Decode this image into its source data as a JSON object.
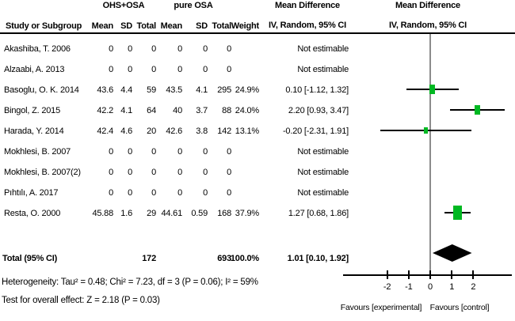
{
  "header": {
    "group1": "OHS+OSA",
    "group2": "pure OSA",
    "md_left": "Mean Difference",
    "md_right": "Mean Difference",
    "sub_left": "IV, Random, 95% CI",
    "sub_right": "IV, Random, 95% CI",
    "columns": {
      "study": "Study or Subgroup",
      "mean1": "Mean",
      "sd1": "SD",
      "total1": "Total",
      "mean2": "Mean",
      "sd2": "SD",
      "total2": "Total",
      "weight": "Weight"
    }
  },
  "colors": {
    "square": "#00b822",
    "ci_line": "#000000",
    "diamond": "#000000",
    "zero_line": "#8c8c8c"
  },
  "chart_data": {
    "type": "forest",
    "effect_measure": "Mean Difference",
    "model": "IV, Random, 95% CI",
    "groups": [
      "OHS+OSA",
      "pure OSA"
    ],
    "studies": [
      {
        "study": "Akashiba, T. 2006",
        "mean1": "0",
        "sd1": "0",
        "total1": "0",
        "mean2": "0",
        "sd2": "0",
        "total2": "0",
        "weight": "",
        "weight_pct": null,
        "ci_text": "Not estimable",
        "md": null,
        "lo": null,
        "hi": null
      },
      {
        "study": "Alzaabi, A. 2013",
        "mean1": "0",
        "sd1": "0",
        "total1": "0",
        "mean2": "0",
        "sd2": "0",
        "total2": "0",
        "weight": "",
        "weight_pct": null,
        "ci_text": "Not estimable",
        "md": null,
        "lo": null,
        "hi": null
      },
      {
        "study": "Basoglu, O. K. 2014",
        "mean1": "43.6",
        "sd1": "4.4",
        "total1": "59",
        "mean2": "43.5",
        "sd2": "4.1",
        "total2": "295",
        "weight": "24.9%",
        "weight_pct": 24.9,
        "ci_text": "0.10 [-1.12, 1.32]",
        "md": 0.1,
        "lo": -1.12,
        "hi": 1.32
      },
      {
        "study": "Bingol, Z. 2015",
        "mean1": "42.2",
        "sd1": "4.1",
        "total1": "64",
        "mean2": "40",
        "sd2": "3.7",
        "total2": "88",
        "weight": "24.0%",
        "weight_pct": 24.0,
        "ci_text": "2.20 [0.93, 3.47]",
        "md": 2.2,
        "lo": 0.93,
        "hi": 3.47
      },
      {
        "study": "Harada, Y. 2014",
        "mean1": "42.4",
        "sd1": "4.6",
        "total1": "20",
        "mean2": "42.6",
        "sd2": "3.8",
        "total2": "142",
        "weight": "13.1%",
        "weight_pct": 13.1,
        "ci_text": "-0.20 [-2.31, 1.91]",
        "md": -0.2,
        "lo": -2.31,
        "hi": 1.91
      },
      {
        "study": "Mokhlesi, B. 2007",
        "mean1": "0",
        "sd1": "0",
        "total1": "0",
        "mean2": "0",
        "sd2": "0",
        "total2": "0",
        "weight": "",
        "weight_pct": null,
        "ci_text": "Not estimable",
        "md": null,
        "lo": null,
        "hi": null
      },
      {
        "study": "Mokhlesi, B. 2007(2)",
        "mean1": "0",
        "sd1": "0",
        "total1": "0",
        "mean2": "0",
        "sd2": "0",
        "total2": "0",
        "weight": "",
        "weight_pct": null,
        "ci_text": "Not estimable",
        "md": null,
        "lo": null,
        "hi": null
      },
      {
        "study": "Pıhtılı, A. 2017",
        "mean1": "0",
        "sd1": "0",
        "total1": "0",
        "mean2": "0",
        "sd2": "0",
        "total2": "0",
        "weight": "",
        "weight_pct": null,
        "ci_text": "Not estimable",
        "md": null,
        "lo": null,
        "hi": null
      },
      {
        "study": "Resta, O. 2000",
        "mean1": "45.88",
        "sd1": "1.6",
        "total1": "29",
        "mean2": "44.61",
        "sd2": "0.59",
        "total2": "168",
        "weight": "37.9%",
        "weight_pct": 37.9,
        "ci_text": "1.27 [0.68, 1.86]",
        "md": 1.27,
        "lo": 0.68,
        "hi": 1.86
      }
    ],
    "total": {
      "label": "Total (95% CI)",
      "total1": "172",
      "total2": "693",
      "weight": "100.0%",
      "ci_text": "1.01 [0.10, 1.92]",
      "md": 1.01,
      "lo": 0.1,
      "hi": 1.92
    },
    "heterogeneity": "Heterogeneity: Tau² = 0.48; Chi² = 7.23, df = 3 (P = 0.06); I² = 59%",
    "overall_effect": "Test for overall effect: Z = 2.18 (P = 0.03)",
    "x_axis": {
      "ticks": [
        -2,
        -1,
        0,
        1,
        2
      ],
      "tick_labels": [
        "-2",
        "-1",
        "0",
        "1",
        "2"
      ],
      "favours_left": "Favours [experimental]",
      "favours_right": "Favours [control]"
    }
  }
}
